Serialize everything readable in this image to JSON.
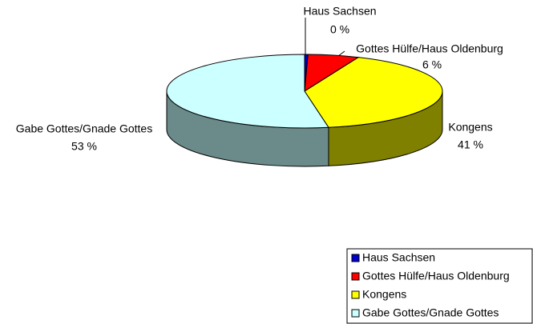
{
  "chart_data": {
    "type": "pie3d",
    "categories": [
      "Haus Sachsen",
      "Gottes Hülfe/Haus Oldenburg",
      "Kongens",
      "Gabe Gottes/Gnade Gottes"
    ],
    "values": [
      0.4,
      6,
      41,
      53
    ],
    "value_labels": [
      "0 %",
      "6 %",
      "41 %",
      "53 %"
    ],
    "colors": [
      "#0000cc",
      "#ff0000",
      "#ffff00",
      "#ccffff"
    ],
    "side_colors": [
      "#000066",
      "#800000",
      "#808000",
      "#6b8a8a"
    ],
    "legend": "bottom-right"
  }
}
